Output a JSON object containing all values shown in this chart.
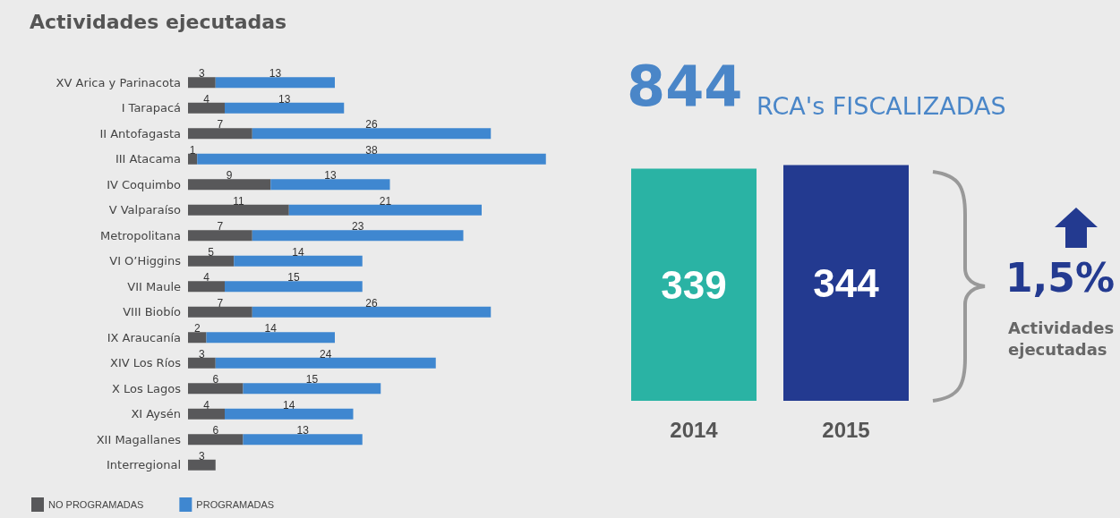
{
  "chart_data": [
    {
      "type": "bar",
      "title": "Actividades ejecutadas",
      "orientation": "horizontal",
      "stacked": true,
      "data_labels": true,
      "legend": "bottom left",
      "categories": [
        "XV Arica y Parinacota",
        "I Tarapacá",
        "II Antofagasta",
        "III Atacama",
        "IV Coquimbo",
        "V Valparaíso",
        "Metropolitana",
        "VI O’Higgins",
        "VII Maule",
        "VIII Biobío",
        "IX Araucanía",
        "XIV Los Ríos",
        "X Los Lagos",
        "XI Aysén",
        "XII Magallanes",
        "Interregional"
      ],
      "series": [
        {
          "name": "NO PROGRAMADAS",
          "color": "#58585a",
          "values": [
            3,
            4,
            7,
            1,
            9,
            11,
            7,
            5,
            4,
            7,
            2,
            3,
            6,
            4,
            6,
            3
          ]
        },
        {
          "name": "PROGRAMADAS",
          "color": "#3f87d0",
          "values": [
            13,
            13,
            26,
            38,
            13,
            21,
            23,
            14,
            15,
            26,
            14,
            24,
            15,
            14,
            13,
            null
          ]
        }
      ]
    },
    {
      "type": "bar",
      "title": "844",
      "subtitle": "RCA's FISCALIZADAS",
      "categories": [
        "2014",
        "2015"
      ],
      "values": [
        339,
        344
      ],
      "colors": [
        "#2ab3a4",
        "#233a90"
      ],
      "data_labels": true,
      "annotations": [
        "1,5%",
        "Actividades ejecutadas"
      ]
    }
  ]
}
